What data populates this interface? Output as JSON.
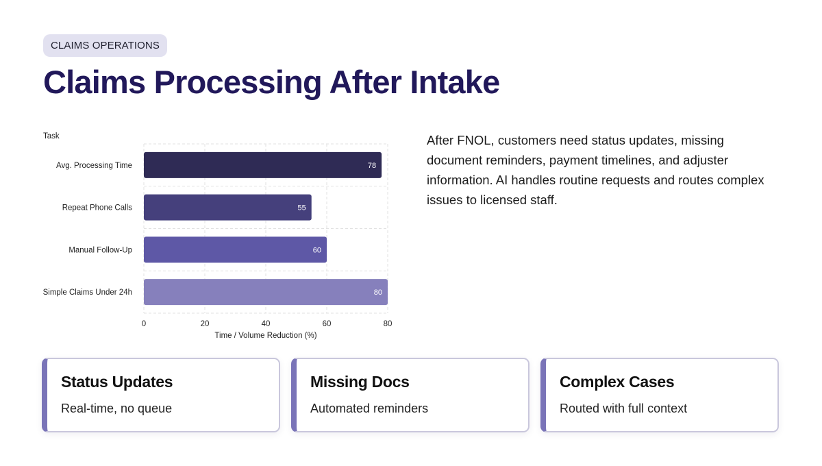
{
  "tag": "CLAIMS OPERATIONS",
  "title": "Claims Processing After Intake",
  "description": "After FNOL, customers need status updates, missing document reminders, payment timelines, and adjuster information. AI handles routine requests and routes complex issues to licensed staff.",
  "cards": [
    {
      "title": "Status Updates",
      "subtitle": "Real-time, no queue"
    },
    {
      "title": "Missing Docs",
      "subtitle": "Automated reminders"
    },
    {
      "title": "Complex Cases",
      "subtitle": "Routed with full context"
    }
  ],
  "colors": {
    "accent": "#7a74b8",
    "title": "#21185a"
  },
  "chart_data": {
    "type": "bar",
    "orientation": "horizontal",
    "categories": [
      "Avg. Processing Time",
      "Repeat Phone Calls",
      "Manual Follow-Up",
      "Simple Claims Under 24h"
    ],
    "values": [
      78,
      55,
      60,
      80
    ],
    "bar_colors": [
      "#2f2b55",
      "#45407c",
      "#5e58a6",
      "#8680bc"
    ],
    "xlabel": "Time / Volume Reduction (%)",
    "ylabel": "Task",
    "xlim": [
      0,
      80
    ],
    "xticks": [
      0,
      20,
      40,
      60,
      80
    ],
    "grid": true,
    "data_labels": true
  }
}
